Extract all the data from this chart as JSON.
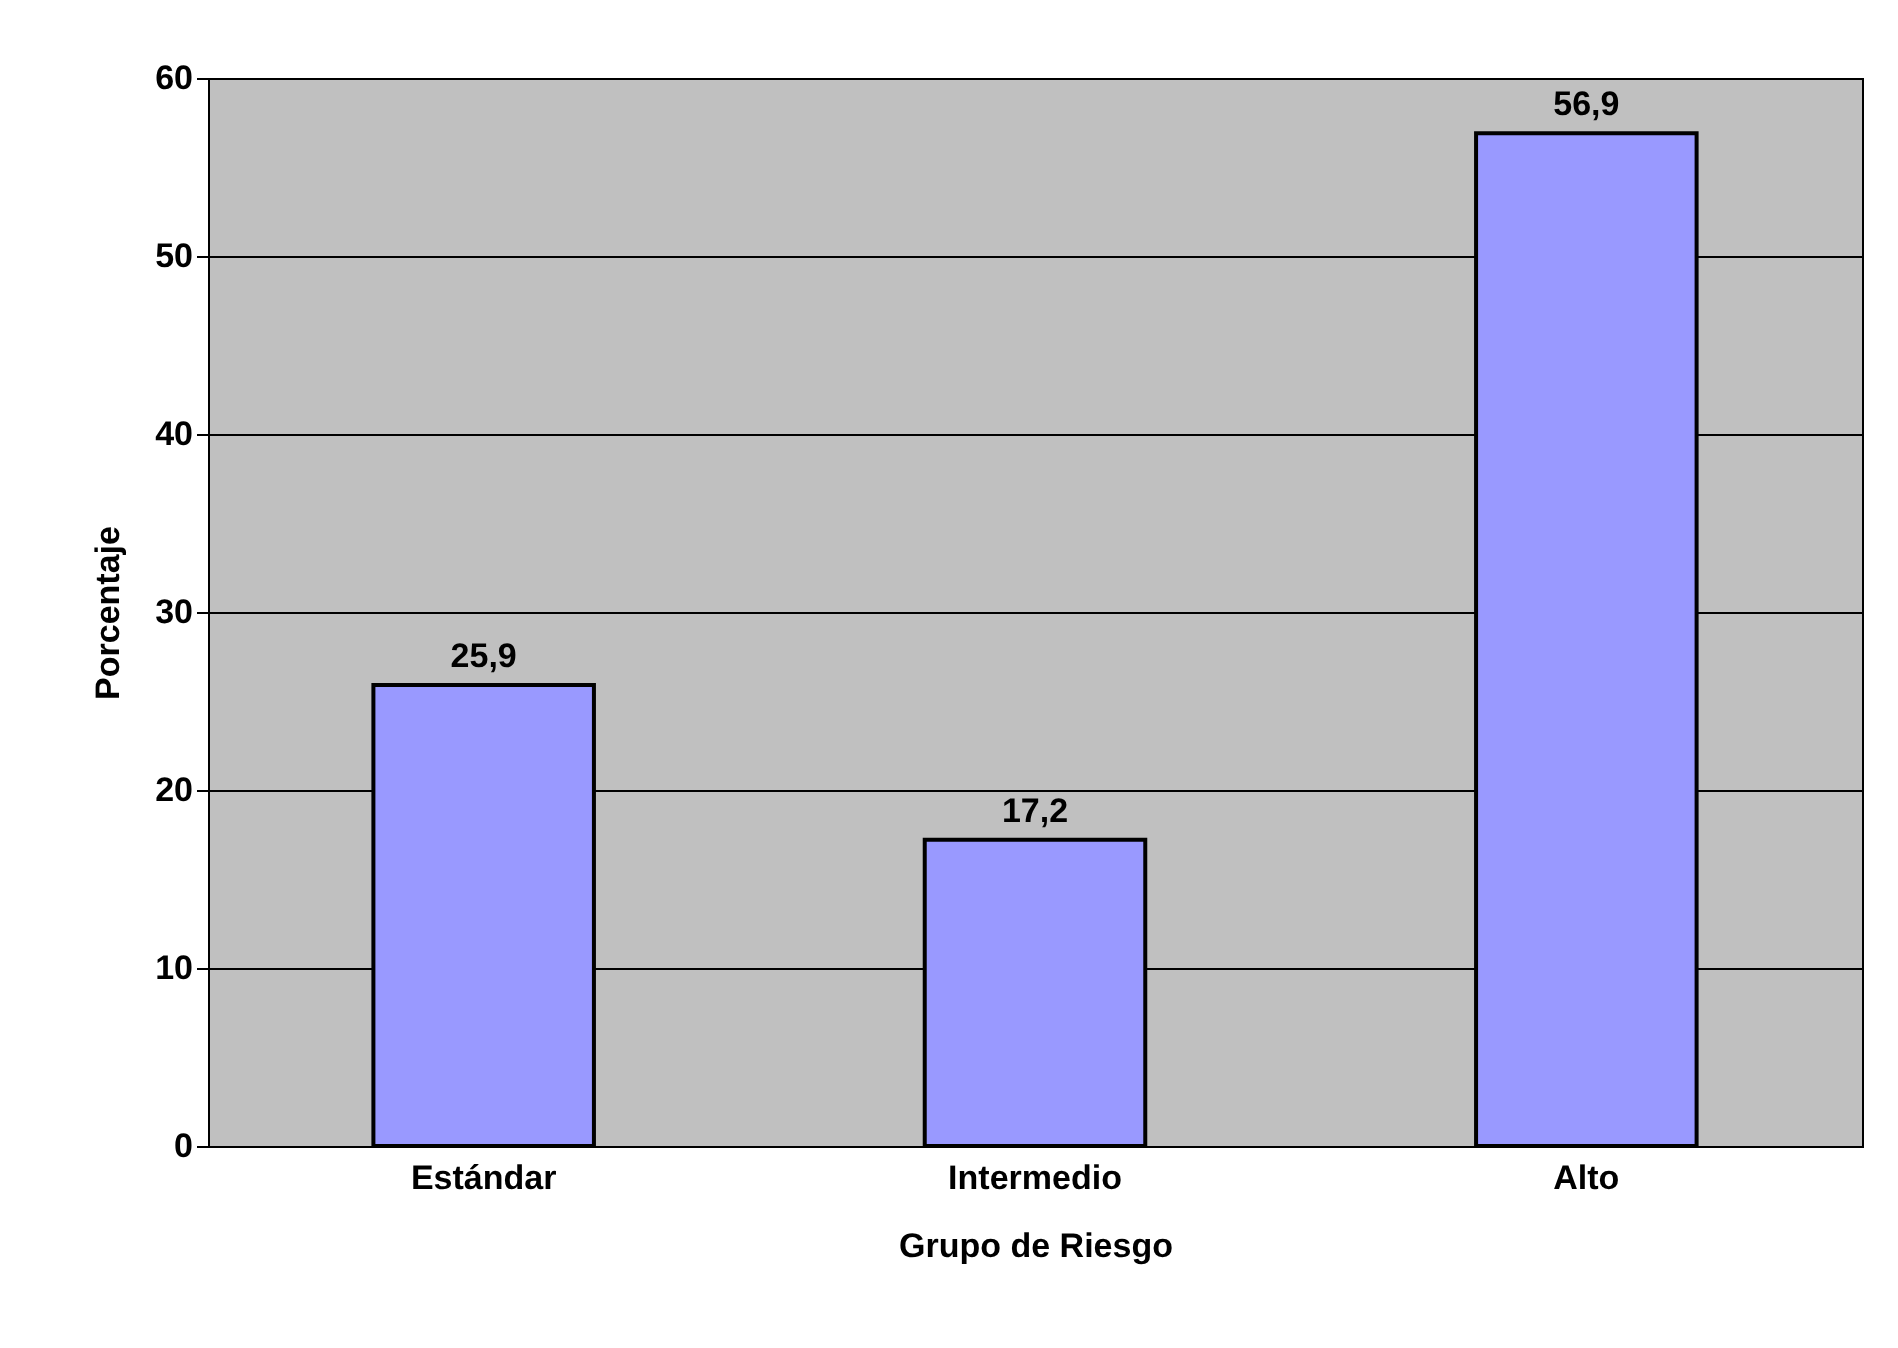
{
  "chart_data": {
    "type": "bar",
    "xlabel": "Grupo de Riesgo",
    "ylabel": "Porcentaje",
    "categories": [
      "Estándar",
      "Intermedio",
      "Alto"
    ],
    "values": [
      25.9,
      17.2,
      56.9
    ],
    "value_labels": [
      "25,9",
      "17,2",
      "56,9"
    ],
    "color": "#9999ff",
    "ylim": [
      0,
      60
    ],
    "yticks": [
      0,
      10,
      20,
      30,
      40,
      50,
      60
    ],
    "grid": "y"
  }
}
